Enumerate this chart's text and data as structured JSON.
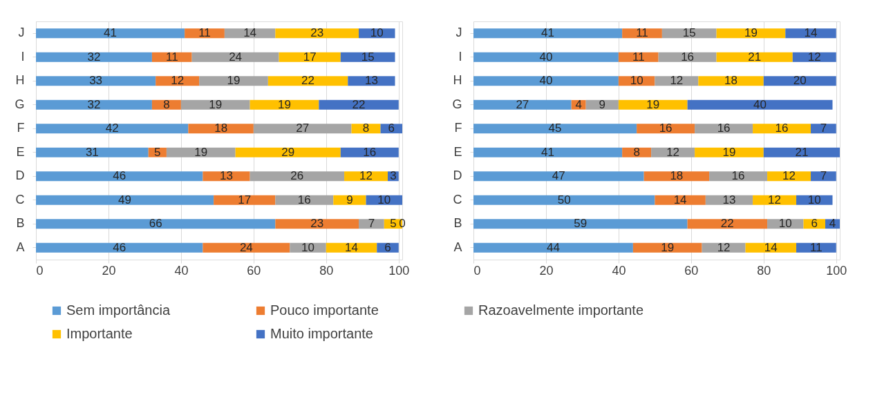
{
  "chart_data": [
    {
      "type": "bar",
      "orientation": "horizontal",
      "stacked": true,
      "data_labels": true,
      "grid": "x",
      "legend": "bottom",
      "categories": [
        "J",
        "I",
        "H",
        "G",
        "F",
        "E",
        "D",
        "C",
        "B",
        "A"
      ],
      "xlim": [
        0,
        101
      ],
      "xticks": [
        0,
        20,
        40,
        60,
        80,
        100
      ],
      "series": [
        {
          "name": "Sem importância",
          "color": "#5b9bd5",
          "values": [
            41,
            32,
            33,
            32,
            42,
            31,
            46,
            49,
            66,
            46
          ]
        },
        {
          "name": "Pouco importante",
          "color": "#ed7d31",
          "values": [
            11,
            11,
            12,
            8,
            18,
            5,
            13,
            17,
            23,
            24
          ]
        },
        {
          "name": "Razoavelmente importante",
          "color": "#a5a5a5",
          "values": [
            14,
            24,
            19,
            19,
            27,
            19,
            26,
            16,
            7,
            10
          ]
        },
        {
          "name": "Importante",
          "color": "#ffc000",
          "values": [
            23,
            17,
            22,
            19,
            8,
            29,
            12,
            9,
            5,
            14
          ]
        },
        {
          "name": "Muito importante",
          "color": "#4472c4",
          "values": [
            10,
            15,
            13,
            22,
            6,
            16,
            3,
            10,
            0,
            6
          ]
        }
      ]
    },
    {
      "type": "bar",
      "orientation": "horizontal",
      "stacked": true,
      "data_labels": true,
      "grid": "x",
      "legend": "bottom",
      "categories": [
        "J",
        "I",
        "H",
        "G",
        "F",
        "E",
        "D",
        "C",
        "B",
        "A"
      ],
      "xlim": [
        0,
        101
      ],
      "xticks": [
        0,
        20,
        40,
        60,
        80,
        100
      ],
      "series": [
        {
          "name": "Sem importância",
          "color": "#5b9bd5",
          "values": [
            41,
            40,
            40,
            27,
            45,
            41,
            47,
            50,
            59,
            44
          ]
        },
        {
          "name": "Pouco importante",
          "color": "#ed7d31",
          "values": [
            11,
            11,
            10,
            4,
            16,
            8,
            18,
            14,
            22,
            19
          ]
        },
        {
          "name": "Razoavelmente importante",
          "color": "#a5a5a5",
          "values": [
            15,
            16,
            12,
            9,
            16,
            12,
            16,
            13,
            10,
            12
          ]
        },
        {
          "name": "Importante",
          "color": "#ffc000",
          "values": [
            19,
            21,
            18,
            19,
            16,
            19,
            12,
            12,
            6,
            14
          ]
        },
        {
          "name": "Muito importante",
          "color": "#4472c4",
          "values": [
            14,
            12,
            20,
            40,
            7,
            21,
            7,
            10,
            4,
            11
          ]
        }
      ]
    }
  ]
}
